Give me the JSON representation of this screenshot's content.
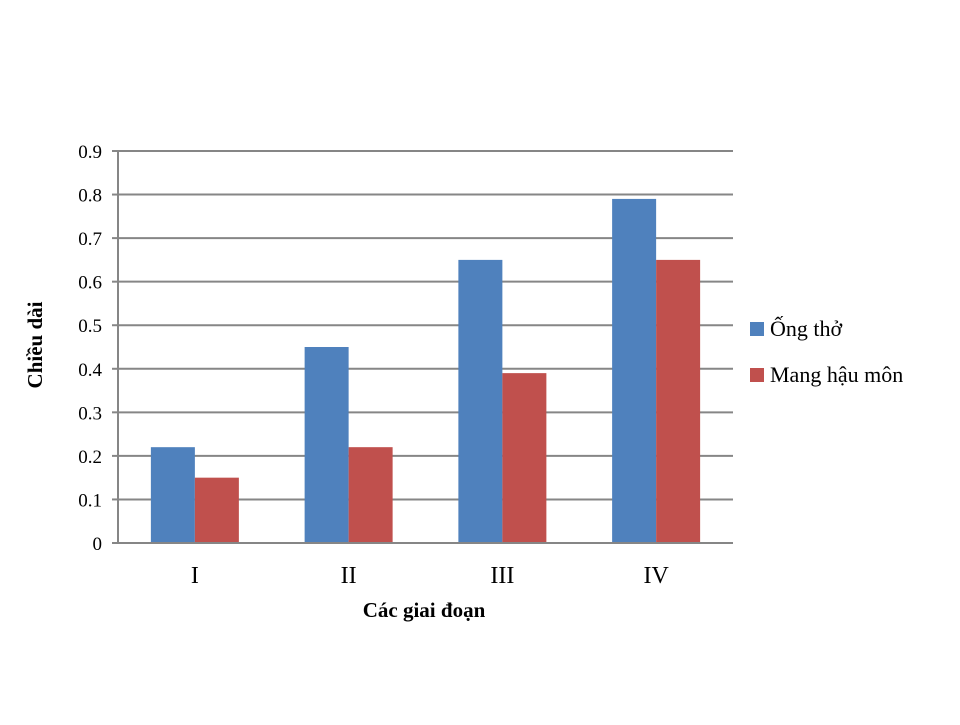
{
  "chart_data": {
    "type": "bar",
    "categories": [
      "I",
      "II",
      "III",
      "IV"
    ],
    "series": [
      {
        "name": "Ống thở",
        "values": [
          0.22,
          0.45,
          0.65,
          0.79
        ],
        "color": "#4F81BD"
      },
      {
        "name": "Mang hậu môn",
        "values": [
          0.15,
          0.22,
          0.39,
          0.65
        ],
        "color": "#C0504D"
      }
    ],
    "xlabel": "Các giai đoạn",
    "ylabel": "Chiều dài",
    "ylim": [
      0,
      0.9
    ],
    "yticks": [
      "0",
      "0.1",
      "0.2",
      "0.3",
      "0.4",
      "0.5",
      "0.6",
      "0.7",
      "0.8",
      "0.9"
    ],
    "grid": true,
    "gridline_color": "#868686",
    "legend_position": "right"
  }
}
